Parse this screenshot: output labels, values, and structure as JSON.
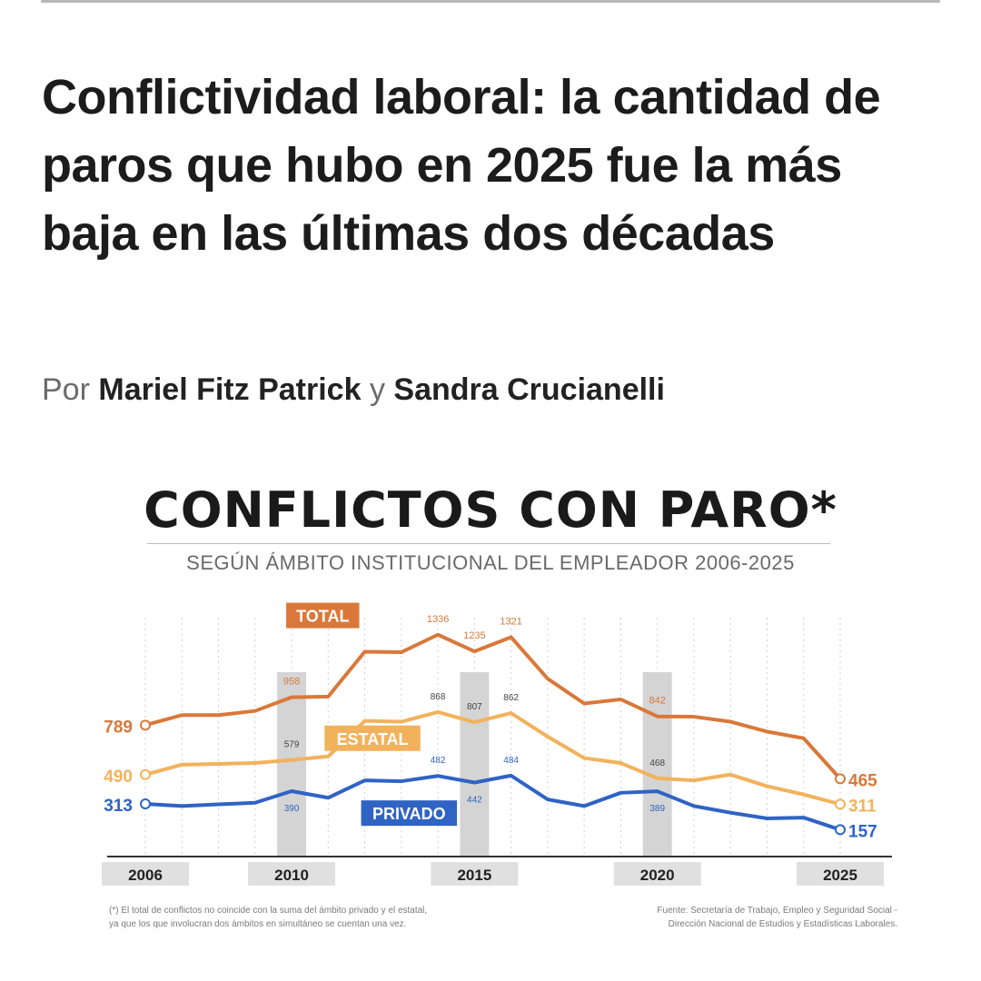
{
  "article": {
    "headline": "Conflictividad laboral: la cantidad de paros que hubo en 2025 fue la más baja en las últimas dos décadas",
    "byline_prefix": "Por",
    "author_1": "Mariel Fitz Patrick",
    "byline_joiner": "y",
    "author_2": "Sandra Crucianelli"
  },
  "chart_data": {
    "type": "line",
    "title": "CONFLICTOS CON PARO*",
    "subtitle": "SEGÚN ÁMBITO INSTITUCIONAL DEL EMPLEADOR 2006-2025",
    "x": [
      2006,
      2007,
      2008,
      2009,
      2010,
      2011,
      2012,
      2013,
      2014,
      2015,
      2016,
      2017,
      2018,
      2019,
      2020,
      2021,
      2022,
      2023,
      2024,
      2025
    ],
    "x_tick_labels": [
      "2006",
      "2010",
      "2015",
      "2020",
      "2025"
    ],
    "highlighted_years": [
      2010,
      2015,
      2020
    ],
    "series": [
      {
        "name": "TOTAL",
        "color": "#d9783a",
        "values": [
          789,
          850,
          850,
          875,
          958,
          962,
          1233,
          1230,
          1336,
          1235,
          1321,
          1070,
          920,
          945,
          842,
          840,
          810,
          750,
          710,
          465
        ],
        "labels": [
          {
            "year": 2006,
            "text": "789"
          },
          {
            "year": 2010,
            "text": "958"
          },
          {
            "year": 2014,
            "text": "1336"
          },
          {
            "year": 2015,
            "text": "1235"
          },
          {
            "year": 2016,
            "text": "1321"
          },
          {
            "year": 2020,
            "text": "842"
          },
          {
            "year": 2025,
            "text": "465"
          }
        ]
      },
      {
        "name": "ESTATAL",
        "color": "#f2b25c",
        "values": [
          490,
          550,
          555,
          560,
          579,
          600,
          815,
          810,
          868,
          807,
          862,
          720,
          590,
          560,
          468,
          455,
          490,
          420,
          370,
          311
        ],
        "labels": [
          {
            "year": 2006,
            "text": "490"
          },
          {
            "year": 2010,
            "text": "579"
          },
          {
            "year": 2014,
            "text": "868"
          },
          {
            "year": 2015,
            "text": "807"
          },
          {
            "year": 2016,
            "text": "862"
          },
          {
            "year": 2020,
            "text": "468"
          },
          {
            "year": 2025,
            "text": "311"
          }
        ]
      },
      {
        "name": "PRIVADO",
        "color": "#2f63c4",
        "values": [
          313,
          300,
          310,
          320,
          390,
          350,
          455,
          450,
          482,
          442,
          484,
          340,
          300,
          380,
          389,
          300,
          260,
          225,
          230,
          157
        ],
        "labels": [
          {
            "year": 2006,
            "text": "313"
          },
          {
            "year": 2010,
            "text": "390"
          },
          {
            "year": 2014,
            "text": "482"
          },
          {
            "year": 2015,
            "text": "442"
          },
          {
            "year": 2016,
            "text": "484"
          },
          {
            "year": 2020,
            "text": "389"
          },
          {
            "year": 2025,
            "text": "157"
          }
        ]
      }
    ],
    "ylim": [
      0,
      1450
    ],
    "grid": "vertical-dotted"
  },
  "footnotes": {
    "left_line_1": "(*) El total de conflictos no coincide con la suma del ámbito privado y el estatal,",
    "left_line_2": "ya que los que involucran dos ámbitos en simultáneo se cuentan una vez.",
    "right_line_1": "Fuente: Secretaría de Trabajo, Empleo y Seguridad Social -",
    "right_line_2": "Dirección Nacional de Estudios y Estadísticas Laborales."
  }
}
